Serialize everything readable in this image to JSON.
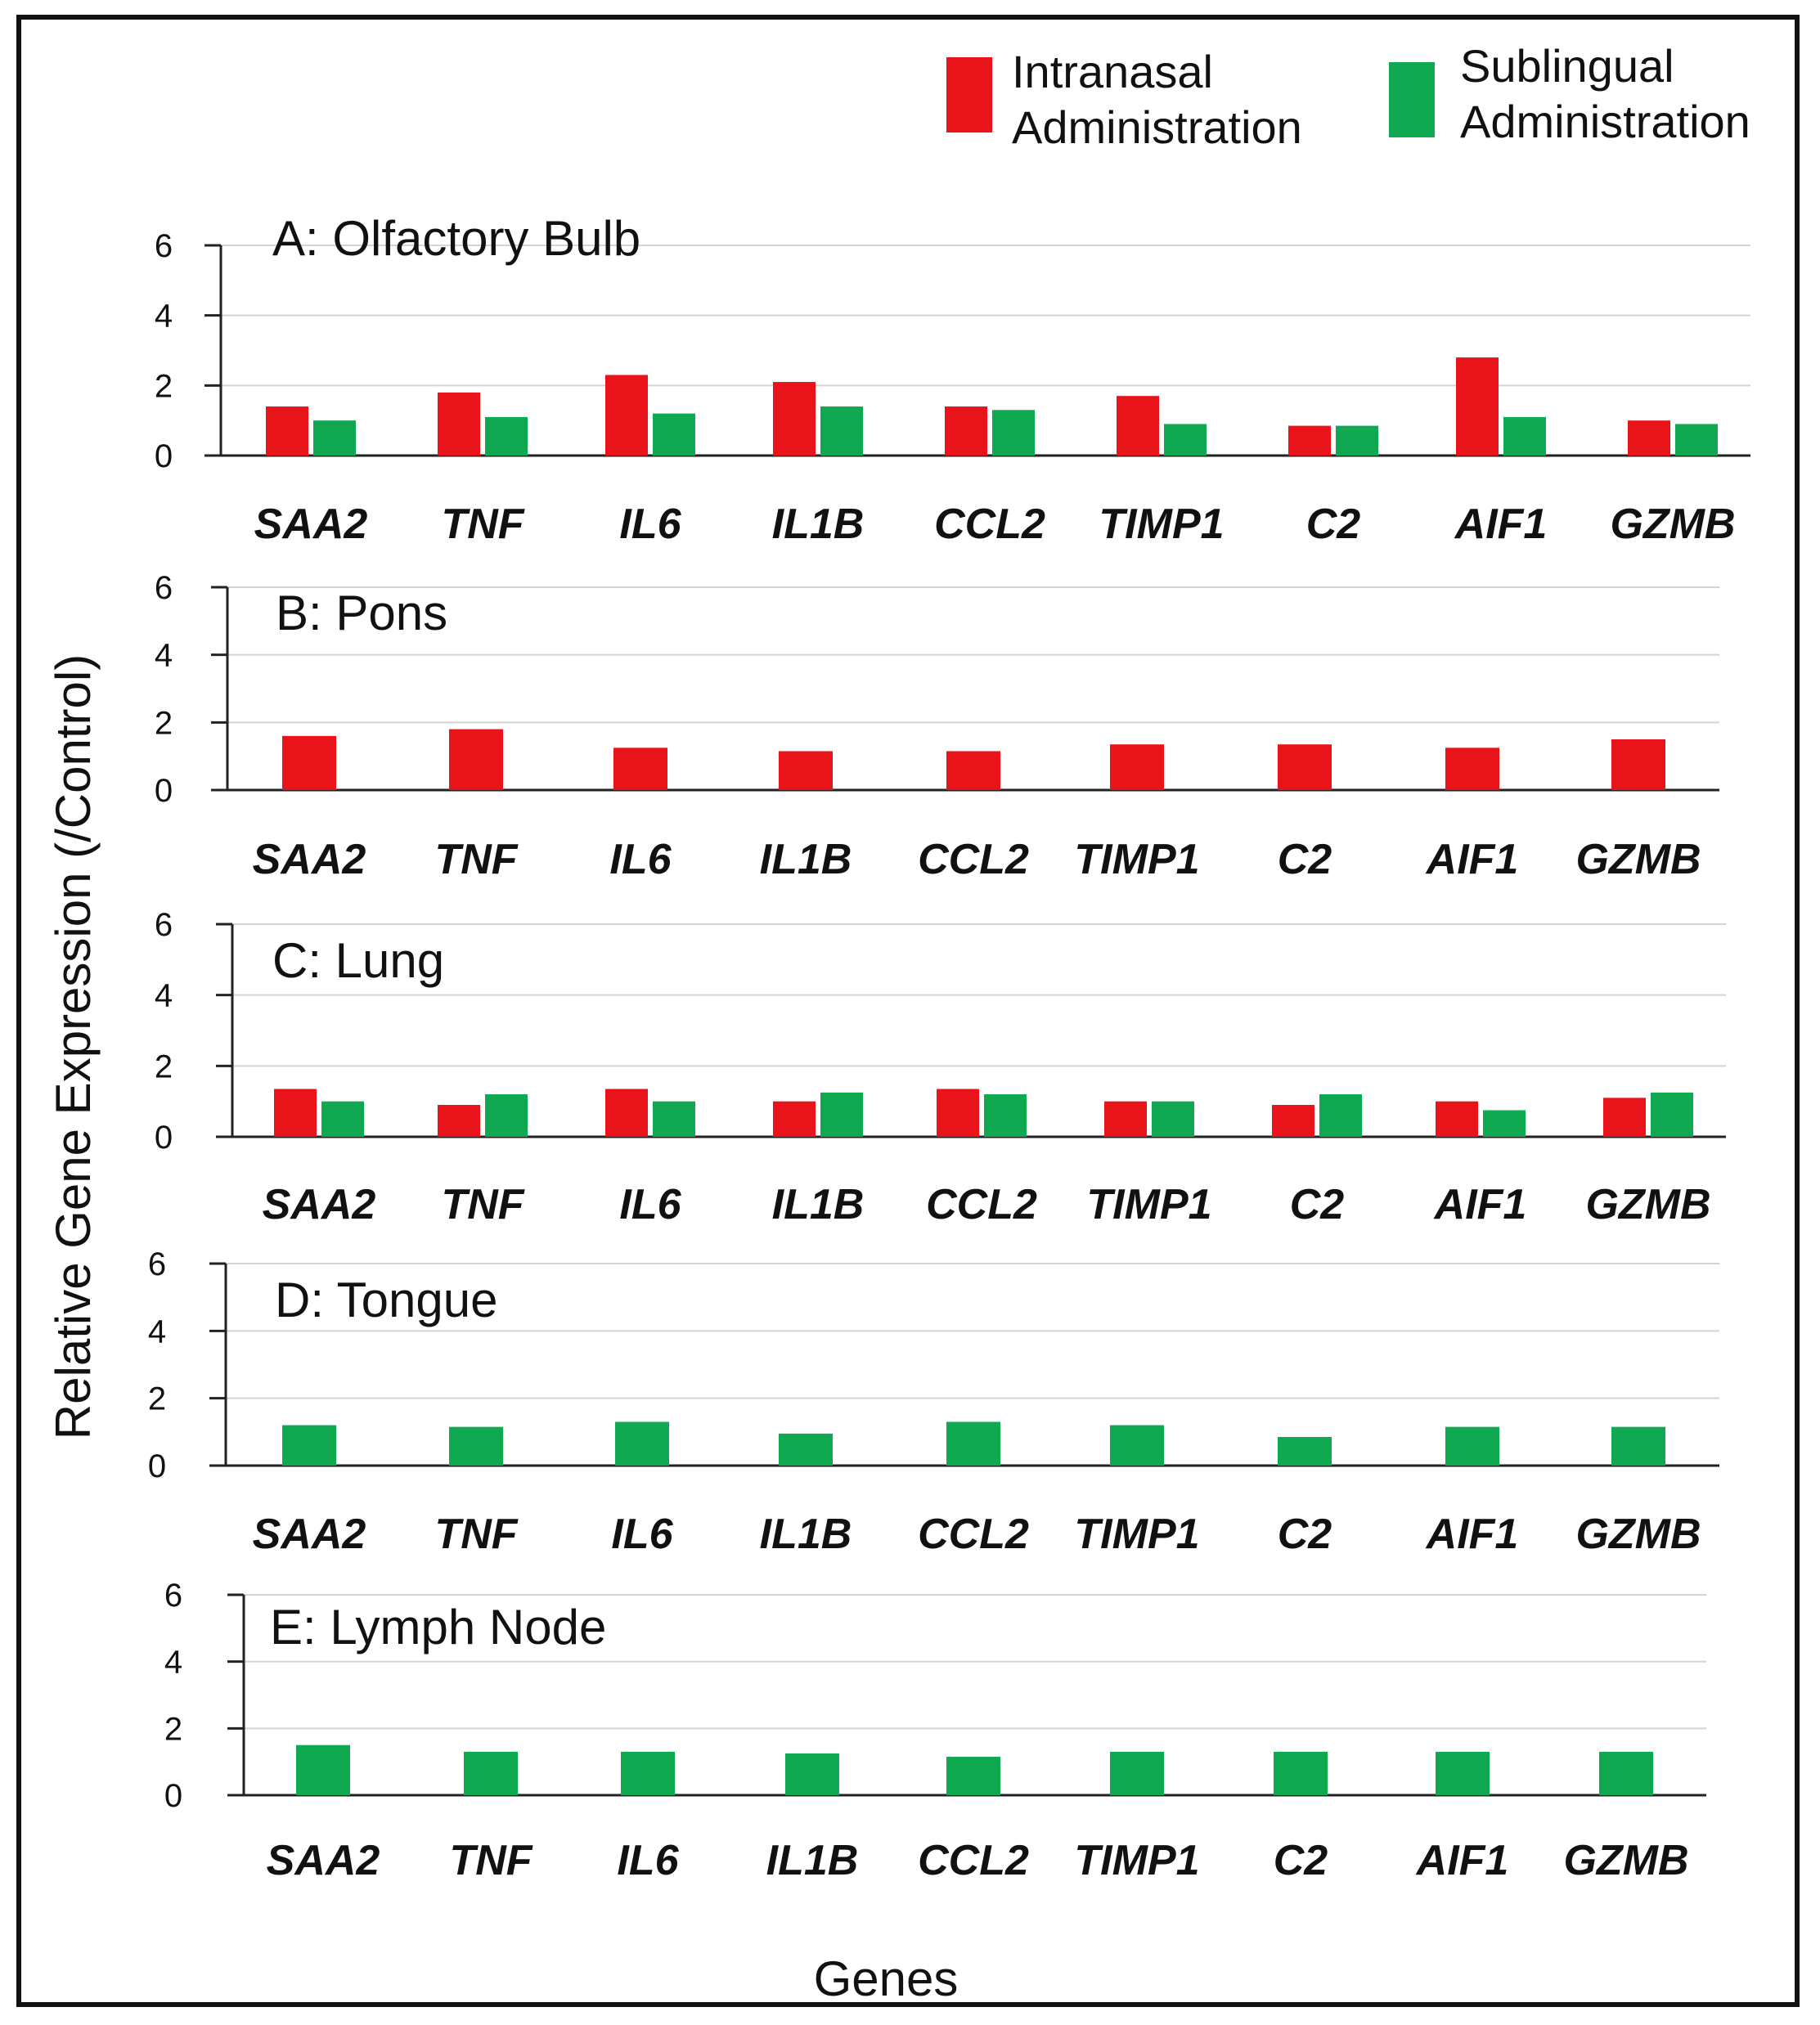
{
  "chart_data": {
    "type": "bar",
    "ylabel": "Relative Gene Expression (/Control)",
    "xlabel": "Genes",
    "ylim": [
      0,
      6
    ],
    "yticks": [
      0,
      2,
      4,
      6
    ],
    "grid": "horizontal",
    "legend_position": "top-right",
    "legend": [
      {
        "line1": "Intranasal",
        "line2": "Administration",
        "color": "#e8141a"
      },
      {
        "line1": "Sublingual",
        "line2": "Administration",
        "color": "#11a852"
      }
    ],
    "categories": [
      "SAA2",
      "TNF",
      "IL6",
      "IL1B",
      "CCL2",
      "TIMP1",
      "C2",
      "AIF1",
      "GZMB"
    ],
    "panels": [
      {
        "title": "A: Olfactory Bulb",
        "series": [
          {
            "color": "#e8141a",
            "values": [
              1.4,
              1.8,
              2.3,
              2.1,
              1.4,
              1.7,
              0.85,
              2.8,
              1.0
            ]
          },
          {
            "color": "#11a852",
            "values": [
              1.0,
              1.1,
              1.2,
              1.4,
              1.3,
              0.9,
              0.85,
              1.1,
              0.9
            ]
          }
        ]
      },
      {
        "title": "B: Pons",
        "series": [
          {
            "color": "#e8141a",
            "values": [
              1.6,
              1.8,
              1.25,
              1.15,
              1.15,
              1.35,
              1.35,
              1.25,
              1.5
            ]
          }
        ]
      },
      {
        "title": "C: Lung",
        "series": [
          {
            "color": "#e8141a",
            "values": [
              1.35,
              0.9,
              1.35,
              1.0,
              1.35,
              1.0,
              0.9,
              1.0,
              1.1
            ]
          },
          {
            "color": "#11a852",
            "values": [
              1.0,
              1.2,
              1.0,
              1.25,
              1.2,
              1.0,
              1.2,
              0.75,
              1.25
            ]
          }
        ]
      },
      {
        "title": "D: Tongue",
        "series": [
          {
            "color": "#11a852",
            "values": [
              1.2,
              1.15,
              1.3,
              0.95,
              1.3,
              1.2,
              0.85,
              1.15,
              1.15
            ]
          }
        ]
      },
      {
        "title": "E: Lymph Node",
        "series": [
          {
            "color": "#11a852",
            "values": [
              1.5,
              1.3,
              1.3,
              1.25,
              1.15,
              1.3,
              1.3,
              1.3,
              1.3
            ]
          }
        ]
      }
    ]
  }
}
